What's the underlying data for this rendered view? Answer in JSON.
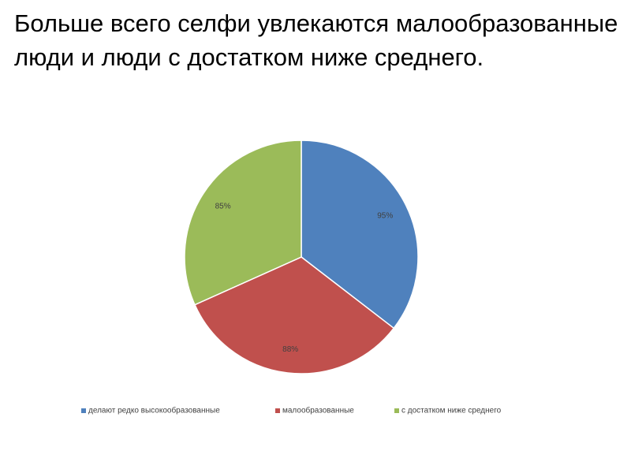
{
  "chart_data": {
    "type": "pie",
    "title": "Больше всего селфи увлекаются малообразованные люди и люди с достатком ниже среднего.",
    "categories": [
      "делают редко высокообразованные",
      "малообразованные",
      "с достатком ниже среднего"
    ],
    "values": [
      95,
      88,
      85
    ],
    "value_labels": [
      "95%",
      "88%",
      "85%"
    ],
    "colors": [
      "#4f81bd",
      "#c0504d",
      "#9bbb59"
    ],
    "legend": "bottom"
  }
}
